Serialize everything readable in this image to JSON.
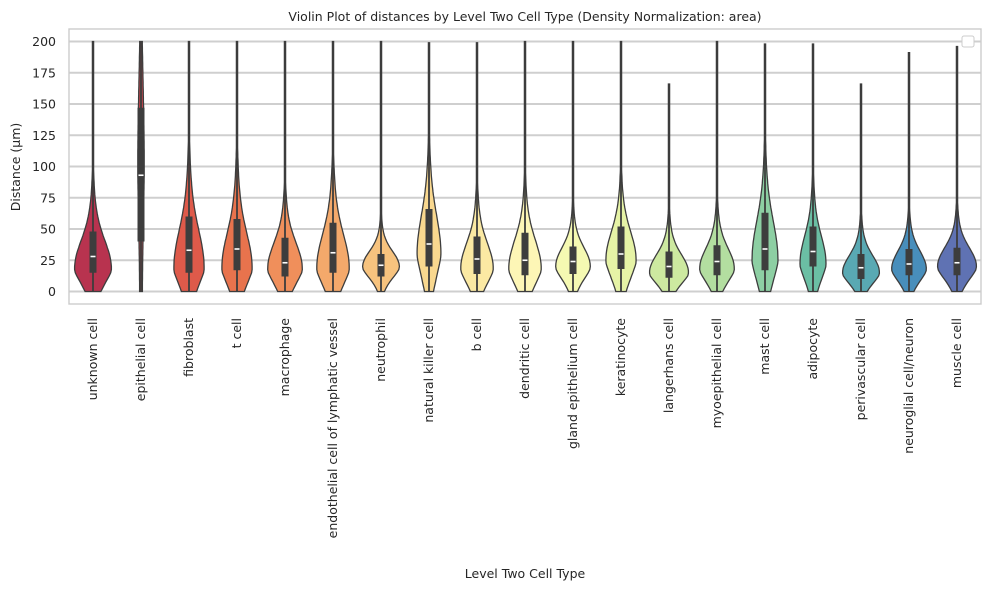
{
  "chart_data": {
    "type": "violin",
    "title": "Violin Plot of distances by Level Two Cell Type (Density Normalization: area)",
    "xlabel": "Level Two Cell Type",
    "ylabel": "Distance (µm)",
    "ylim": [
      -10,
      210
    ],
    "yticks": [
      0,
      25,
      50,
      75,
      100,
      125,
      150,
      175,
      200
    ],
    "grid": "horizontal",
    "legend": "top-right (empty)",
    "categories": [
      "unknown cell",
      "epithelial cell",
      "fibroblast",
      "t cell",
      "macrophage",
      "endothelial cell of lymphatic vessel",
      "neutrophil",
      "natural killer cell",
      "b cell",
      "dendritic cell",
      "gland epithelium cell",
      "keratinocyte",
      "langerhans cell",
      "myoepithelial cell",
      "mast cell",
      "adipocyte",
      "perivascular cell",
      "neuroglial cell/neuron",
      "muscle cell"
    ],
    "series": [
      {
        "name": "unknown cell",
        "color": "#b8334f",
        "min": 0,
        "q1": 15,
        "median": 28,
        "q3": 48,
        "max": 200,
        "peak": 18,
        "width": 0.85
      },
      {
        "name": "epithelial cell",
        "color": "#c8454d",
        "min": 0,
        "q1": 40,
        "median": 93,
        "q3": 147,
        "max": 200,
        "peak": 100,
        "width": 0.15
      },
      {
        "name": "fibroblast",
        "color": "#de5a4a",
        "min": 0,
        "q1": 15,
        "median": 33,
        "q3": 60,
        "max": 200,
        "peak": 18,
        "width": 0.7
      },
      {
        "name": "t cell",
        "color": "#e8734d",
        "min": 0,
        "q1": 17,
        "median": 34,
        "q3": 58,
        "max": 200,
        "peak": 18,
        "width": 0.7
      },
      {
        "name": "macrophage",
        "color": "#f08f5b",
        "min": 0,
        "q1": 12,
        "median": 23,
        "q3": 43,
        "max": 200,
        "peak": 18,
        "width": 0.8
      },
      {
        "name": "endothelial cell of lymphatic vessel",
        "color": "#f4a96b",
        "min": 0,
        "q1": 15,
        "median": 31,
        "q3": 55,
        "max": 200,
        "peak": 18,
        "width": 0.75
      },
      {
        "name": "neutrophil",
        "color": "#f7c37e",
        "min": 0,
        "q1": 12,
        "median": 21,
        "q3": 30,
        "max": 200,
        "peak": 20,
        "width": 0.85
      },
      {
        "name": "natural killer cell",
        "color": "#f9d88f",
        "min": 0,
        "q1": 20,
        "median": 38,
        "q3": 66,
        "max": 199,
        "peak": 30,
        "width": 0.55
      },
      {
        "name": "b cell",
        "color": "#fbe9a3",
        "min": 0,
        "q1": 14,
        "median": 26,
        "q3": 44,
        "max": 199,
        "peak": 18,
        "width": 0.75
      },
      {
        "name": "dendritic cell",
        "color": "#fdf6b6",
        "min": 0,
        "q1": 13,
        "median": 25,
        "q3": 47,
        "max": 200,
        "peak": 18,
        "width": 0.75
      },
      {
        "name": "gland epithelium cell",
        "color": "#f5f9b2",
        "min": 0,
        "q1": 14,
        "median": 24,
        "q3": 36,
        "max": 200,
        "peak": 20,
        "width": 0.8
      },
      {
        "name": "keratinocyte",
        "color": "#e6f3a6",
        "min": 0,
        "q1": 18,
        "median": 30,
        "q3": 52,
        "max": 200,
        "peak": 25,
        "width": 0.7
      },
      {
        "name": "langerhans cell",
        "color": "#cde9a0",
        "min": 0,
        "q1": 11,
        "median": 20,
        "q3": 32,
        "max": 166,
        "peak": 15,
        "width": 0.9
      },
      {
        "name": "myoepithelial cell",
        "color": "#b3dea0",
        "min": 0,
        "q1": 13,
        "median": 24,
        "q3": 37,
        "max": 200,
        "peak": 18,
        "width": 0.8
      },
      {
        "name": "mast cell",
        "color": "#8dcfa3",
        "min": 0,
        "q1": 17,
        "median": 34,
        "q3": 63,
        "max": 198,
        "peak": 25,
        "width": 0.6
      },
      {
        "name": "adipocyte",
        "color": "#6bbfa4",
        "min": 0,
        "q1": 20,
        "median": 32,
        "q3": 52,
        "max": 198,
        "peak": 22,
        "width": 0.6
      },
      {
        "name": "perivascular cell",
        "color": "#59a9b3",
        "min": 0,
        "q1": 10,
        "median": 19,
        "q3": 30,
        "max": 166,
        "peak": 15,
        "width": 0.85
      },
      {
        "name": "neuroglial cell/neuron",
        "color": "#488ebb",
        "min": 0,
        "q1": 13,
        "median": 22,
        "q3": 34,
        "max": 191,
        "peak": 18,
        "width": 0.8
      },
      {
        "name": "muscle cell",
        "color": "#5f72b3",
        "min": 0,
        "q1": 13,
        "median": 23,
        "q3": 35,
        "max": 196,
        "peak": 20,
        "width": 0.9
      }
    ]
  }
}
